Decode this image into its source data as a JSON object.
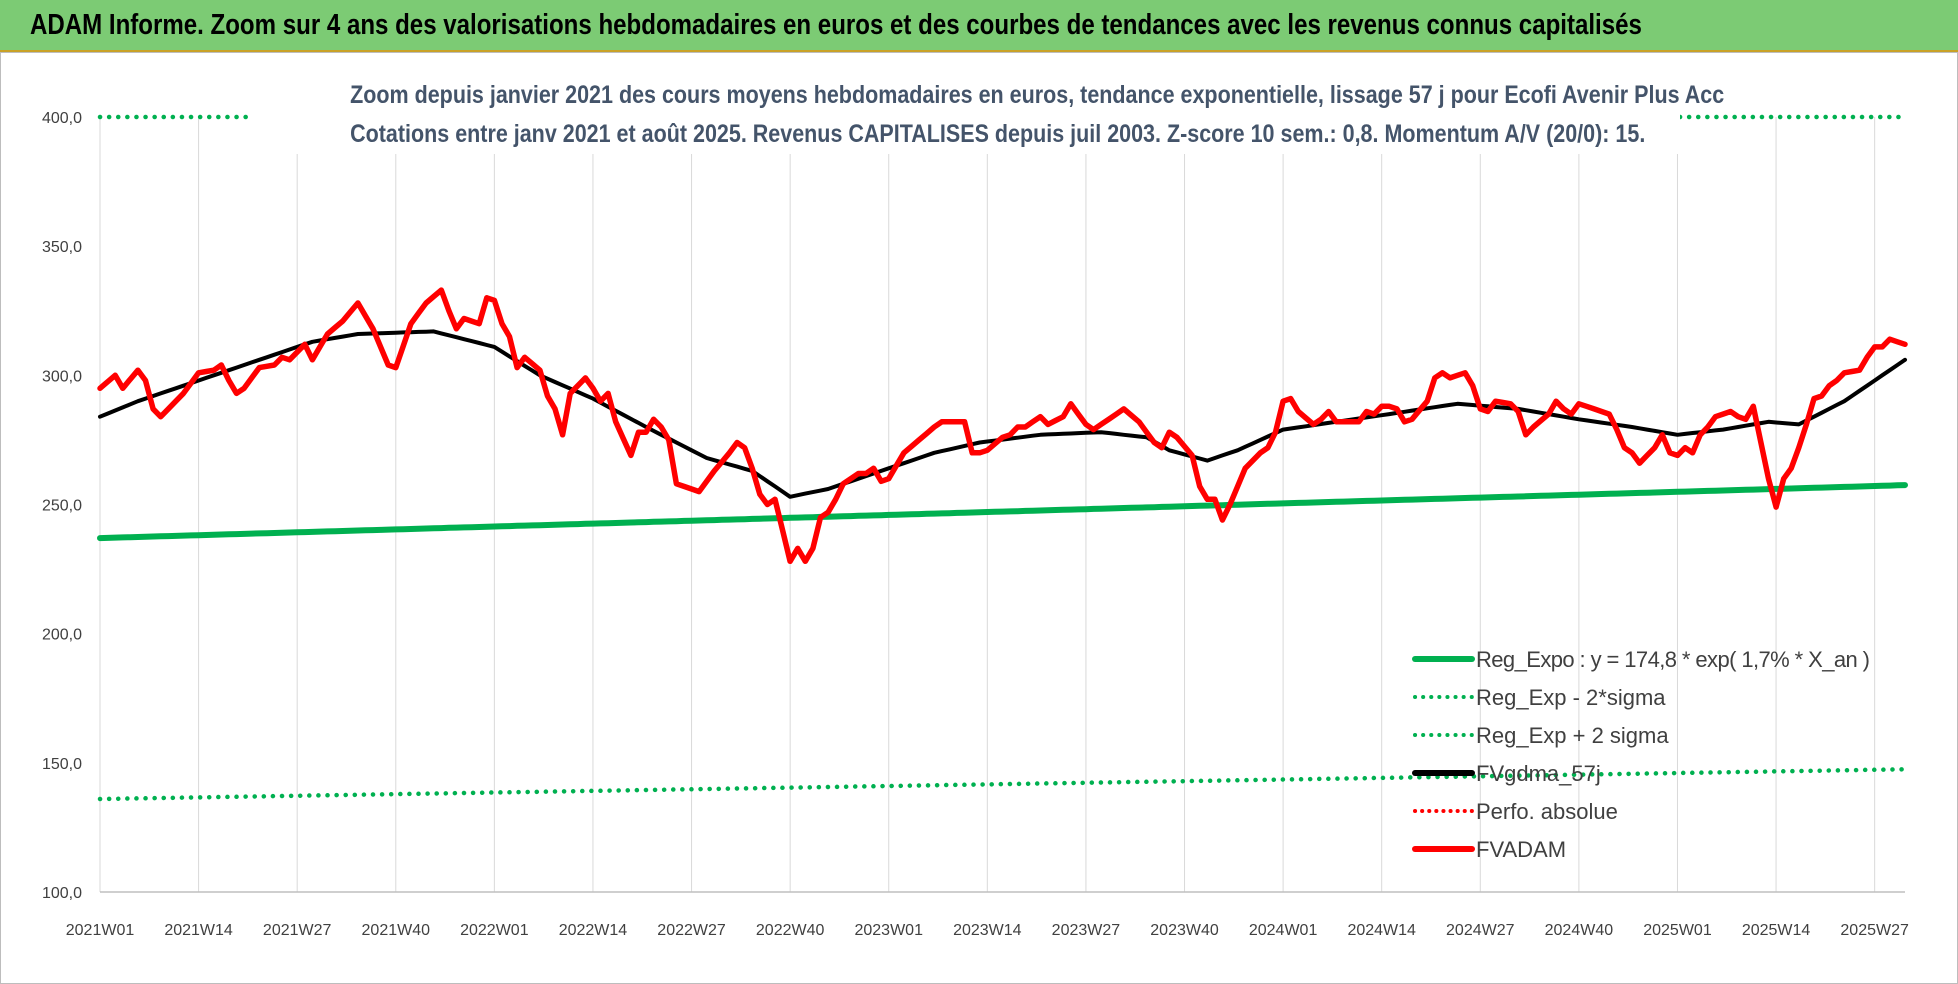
{
  "header": {
    "title": "ADAM Informe. Zoom sur 4 ans des valorisations hebdomadaires en euros et des courbes de tendances avec les revenus connus capitalisés"
  },
  "colors": {
    "header_bg": "#7ccb74",
    "reg_green": "#00b050",
    "red": "#ff0000",
    "black": "#000000",
    "subtitle": "#44546a"
  },
  "chart_data": {
    "type": "line",
    "title_lines": [
      "Zoom depuis janvier 2021 des cours moyens hebdomadaires en euros, tendance exponentielle, lissage 57 j pour Ecofi Avenir Plus Acc",
      "Cotations entre janv 2021 et août 2025. Revenus CAPITALISES depuis juil 2003. Z-score 10 sem.: 0,8. Momentum A/V (20/0): 15."
    ],
    "ylim": [
      100,
      400
    ],
    "y_ticks": [
      "100,0",
      "150,0",
      "200,0",
      "250,0",
      "300,0",
      "350,0",
      "400,0"
    ],
    "x_tick_labels": [
      "2021W01",
      "2021W14",
      "2021W27",
      "2021W40",
      "2022W01",
      "2022W14",
      "2022W27",
      "2022W40",
      "2023W01",
      "2023W14",
      "2023W27",
      "2023W40",
      "2024W01",
      "2024W14",
      "2024W27",
      "2024W40",
      "2025W01",
      "2025W14",
      "2025W27"
    ],
    "x_tick_index": [
      0,
      13,
      26,
      39,
      52,
      65,
      78,
      91,
      104,
      117,
      130,
      143,
      156,
      169,
      182,
      195,
      208,
      221,
      234
    ],
    "n_weeks": 239,
    "grid": "vertical",
    "legend_position": "bottom-right",
    "series": [
      {
        "name": "Reg_Expo : y = 174,8 * exp( 1,7% *  X_an )",
        "style": "solid",
        "color": "#00b050",
        "kind": "linear",
        "start": 237.0,
        "end": 257.5
      },
      {
        "name": "Reg_Exp - 2*sigma",
        "style": "dotted",
        "color": "#00b050",
        "kind": "linear",
        "start": 136.0,
        "end": 147.5
      },
      {
        "name": "Reg_Exp + 2 sigma",
        "style": "dotted",
        "color": "#00b050",
        "kind": "constant",
        "value": 400.0
      },
      {
        "name": "FVgdma_57j",
        "style": "solid",
        "color": "#000000",
        "kind": "keypoints",
        "points": [
          [
            0,
            284
          ],
          [
            5,
            290
          ],
          [
            12,
            297
          ],
          [
            20,
            305
          ],
          [
            28,
            313
          ],
          [
            34,
            316
          ],
          [
            44,
            317
          ],
          [
            52,
            311
          ],
          [
            58,
            300
          ],
          [
            65,
            291
          ],
          [
            72,
            280
          ],
          [
            80,
            268
          ],
          [
            86,
            263
          ],
          [
            91,
            253
          ],
          [
            96,
            256
          ],
          [
            104,
            264
          ],
          [
            110,
            270
          ],
          [
            116,
            274
          ],
          [
            124,
            277
          ],
          [
            132,
            278
          ],
          [
            138,
            276
          ],
          [
            141,
            271
          ],
          [
            146,
            267
          ],
          [
            150,
            271
          ],
          [
            156,
            279
          ],
          [
            163,
            282
          ],
          [
            170,
            285
          ],
          [
            179,
            289
          ],
          [
            187,
            287
          ],
          [
            195,
            283
          ],
          [
            202,
            280
          ],
          [
            208,
            277
          ],
          [
            214,
            279
          ],
          [
            220,
            282
          ],
          [
            224,
            281
          ],
          [
            230,
            290
          ],
          [
            238,
            306
          ]
        ]
      },
      {
        "name": "Perfo. absolue",
        "style": "dotted",
        "color": "#ff0000",
        "kind": "none"
      },
      {
        "name": "FVADAM",
        "style": "solid",
        "color": "#ff0000",
        "kind": "keypoints",
        "points": [
          [
            0,
            295
          ],
          [
            2,
            300
          ],
          [
            3,
            295
          ],
          [
            5,
            302
          ],
          [
            6,
            298
          ],
          [
            7,
            287
          ],
          [
            8,
            284
          ],
          [
            10,
            290
          ],
          [
            11,
            293
          ],
          [
            13,
            301
          ],
          [
            15,
            302
          ],
          [
            16,
            304
          ],
          [
            17,
            298
          ],
          [
            18,
            293
          ],
          [
            19,
            295
          ],
          [
            21,
            303
          ],
          [
            23,
            304
          ],
          [
            24,
            307
          ],
          [
            25,
            306
          ],
          [
            27,
            312
          ],
          [
            28,
            306
          ],
          [
            30,
            316
          ],
          [
            32,
            321
          ],
          [
            34,
            328
          ],
          [
            36,
            318
          ],
          [
            38,
            304
          ],
          [
            39,
            303
          ],
          [
            41,
            320
          ],
          [
            43,
            328
          ],
          [
            45,
            333
          ],
          [
            46,
            325
          ],
          [
            47,
            318
          ],
          [
            48,
            322
          ],
          [
            50,
            320
          ],
          [
            51,
            330
          ],
          [
            52,
            329
          ],
          [
            53,
            320
          ],
          [
            54,
            315
          ],
          [
            55,
            303
          ],
          [
            56,
            307
          ],
          [
            58,
            302
          ],
          [
            59,
            292
          ],
          [
            60,
            287
          ],
          [
            61,
            277
          ],
          [
            62,
            293
          ],
          [
            64,
            299
          ],
          [
            65,
            295
          ],
          [
            66,
            290
          ],
          [
            67,
            293
          ],
          [
            68,
            282
          ],
          [
            70,
            269
          ],
          [
            71,
            278
          ],
          [
            72,
            278
          ],
          [
            73,
            283
          ],
          [
            74,
            280
          ],
          [
            75,
            275
          ],
          [
            76,
            258
          ],
          [
            78,
            256
          ],
          [
            79,
            255
          ],
          [
            80,
            259
          ],
          [
            81,
            263
          ],
          [
            83,
            270
          ],
          [
            84,
            274
          ],
          [
            85,
            272
          ],
          [
            86,
            264
          ],
          [
            87,
            254
          ],
          [
            88,
            250
          ],
          [
            89,
            252
          ],
          [
            90,
            240
          ],
          [
            91,
            228
          ],
          [
            92,
            233
          ],
          [
            93,
            228
          ],
          [
            94,
            233
          ],
          [
            95,
            245
          ],
          [
            96,
            247
          ],
          [
            97,
            252
          ],
          [
            98,
            258
          ],
          [
            100,
            262
          ],
          [
            101,
            262
          ],
          [
            102,
            264
          ],
          [
            103,
            259
          ],
          [
            104,
            260
          ],
          [
            105,
            265
          ],
          [
            106,
            270
          ],
          [
            108,
            275
          ],
          [
            110,
            280
          ],
          [
            111,
            282
          ],
          [
            113,
            282
          ],
          [
            114,
            282
          ],
          [
            115,
            270
          ],
          [
            116,
            270
          ],
          [
            117,
            271
          ],
          [
            119,
            276
          ],
          [
            120,
            277
          ],
          [
            121,
            280
          ],
          [
            122,
            280
          ],
          [
            124,
            284
          ],
          [
            125,
            281
          ],
          [
            127,
            284
          ],
          [
            128,
            289
          ],
          [
            130,
            281
          ],
          [
            131,
            279
          ],
          [
            132,
            281
          ],
          [
            134,
            285
          ],
          [
            135,
            287
          ],
          [
            137,
            282
          ],
          [
            138,
            278
          ],
          [
            139,
            274
          ],
          [
            140,
            272
          ],
          [
            141,
            278
          ],
          [
            142,
            276
          ],
          [
            144,
            269
          ],
          [
            145,
            257
          ],
          [
            146,
            252
          ],
          [
            147,
            252
          ],
          [
            148,
            244
          ],
          [
            149,
            250
          ],
          [
            150,
            257
          ],
          [
            151,
            264
          ],
          [
            153,
            270
          ],
          [
            154,
            272
          ],
          [
            155,
            278
          ],
          [
            156,
            290
          ],
          [
            157,
            291
          ],
          [
            158,
            286
          ],
          [
            160,
            281
          ],
          [
            161,
            283
          ],
          [
            162,
            286
          ],
          [
            163,
            282
          ],
          [
            166,
            282
          ],
          [
            167,
            286
          ],
          [
            168,
            285
          ],
          [
            169,
            288
          ],
          [
            170,
            288
          ],
          [
            171,
            287
          ],
          [
            172,
            282
          ],
          [
            173,
            283
          ],
          [
            175,
            290
          ],
          [
            176,
            299
          ],
          [
            177,
            301
          ],
          [
            178,
            299
          ],
          [
            180,
            301
          ],
          [
            181,
            296
          ],
          [
            182,
            287
          ],
          [
            183,
            286
          ],
          [
            184,
            290
          ],
          [
            186,
            289
          ],
          [
            187,
            286
          ],
          [
            188,
            277
          ],
          [
            189,
            280
          ],
          [
            191,
            285
          ],
          [
            192,
            290
          ],
          [
            193,
            287
          ],
          [
            194,
            285
          ],
          [
            195,
            289
          ],
          [
            197,
            287
          ],
          [
            199,
            285
          ],
          [
            200,
            279
          ],
          [
            201,
            272
          ],
          [
            202,
            270
          ],
          [
            203,
            266
          ],
          [
            205,
            272
          ],
          [
            206,
            277
          ],
          [
            207,
            270
          ],
          [
            208,
            269
          ],
          [
            209,
            272
          ],
          [
            210,
            270
          ],
          [
            211,
            277
          ],
          [
            212,
            280
          ],
          [
            213,
            284
          ],
          [
            215,
            286
          ],
          [
            216,
            284
          ],
          [
            217,
            283
          ],
          [
            218,
            288
          ],
          [
            219,
            274
          ],
          [
            220,
            260
          ],
          [
            221,
            249
          ],
          [
            222,
            260
          ],
          [
            223,
            264
          ],
          [
            224,
            272
          ],
          [
            225,
            281
          ],
          [
            226,
            291
          ],
          [
            227,
            292
          ],
          [
            228,
            296
          ],
          [
            229,
            298
          ],
          [
            230,
            301
          ],
          [
            232,
            302
          ],
          [
            233,
            307
          ],
          [
            234,
            311
          ],
          [
            235,
            311
          ],
          [
            236,
            314
          ],
          [
            237,
            313
          ],
          [
            238,
            312
          ]
        ]
      }
    ]
  }
}
